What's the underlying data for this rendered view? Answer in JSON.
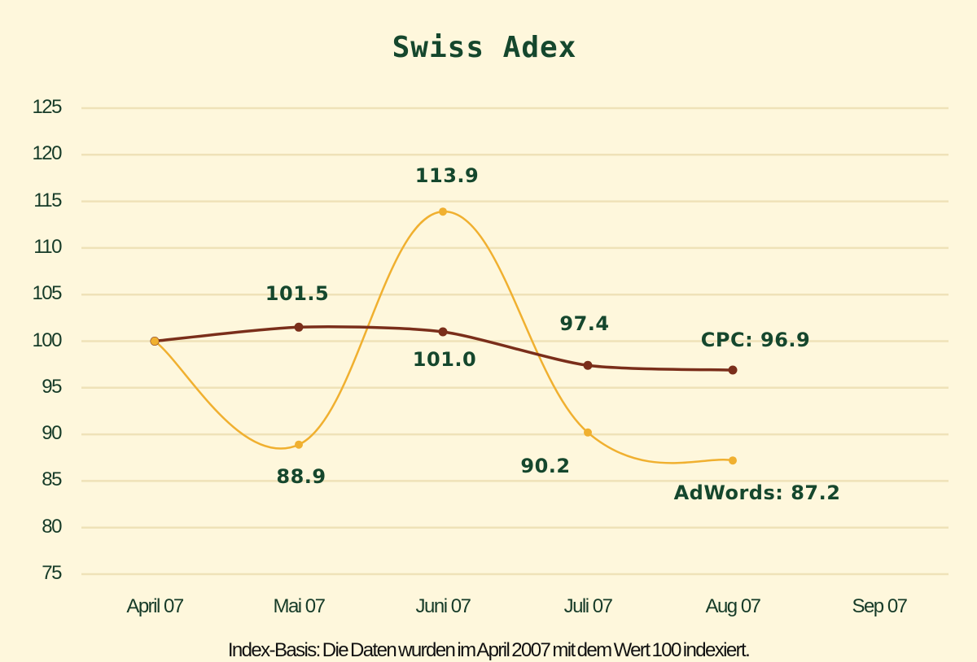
{
  "chart_data": {
    "type": "line",
    "title": "Swiss Adex",
    "xlabel": "",
    "ylabel": "",
    "categories": [
      "April 07",
      "Mai 07",
      "Juni 07",
      "Juli 07",
      "Aug 07",
      "Sep 07"
    ],
    "yticks": [
      "125",
      "120",
      "115",
      "110",
      "105",
      "100",
      "95",
      "90",
      "85",
      "80",
      "75"
    ],
    "ylim": [
      75,
      125
    ],
    "grid": true,
    "legend": "inline end labels",
    "series": [
      {
        "name": "CPC",
        "color": "#7a2e1a",
        "values": [
          100.0,
          101.5,
          101.0,
          97.4,
          96.9,
          null
        ],
        "labels": [
          "",
          "101.5",
          "101.0",
          "97.4",
          "CPC: 96.9",
          ""
        ]
      },
      {
        "name": "AdWords",
        "color": "#f0b030",
        "values": [
          100.0,
          88.9,
          113.9,
          90.2,
          87.2,
          null
        ],
        "labels": [
          "",
          "88.9",
          "113.9",
          "90.2",
          "AdWords: 87.2",
          ""
        ]
      }
    ],
    "footnote": "Index-Basis: Die Daten wurden im April 2007 mit dem Wert 100 indexiert."
  },
  "colors": {
    "background": "#fef7dc",
    "grid": "#efe2b8",
    "text": "#15472d"
  }
}
